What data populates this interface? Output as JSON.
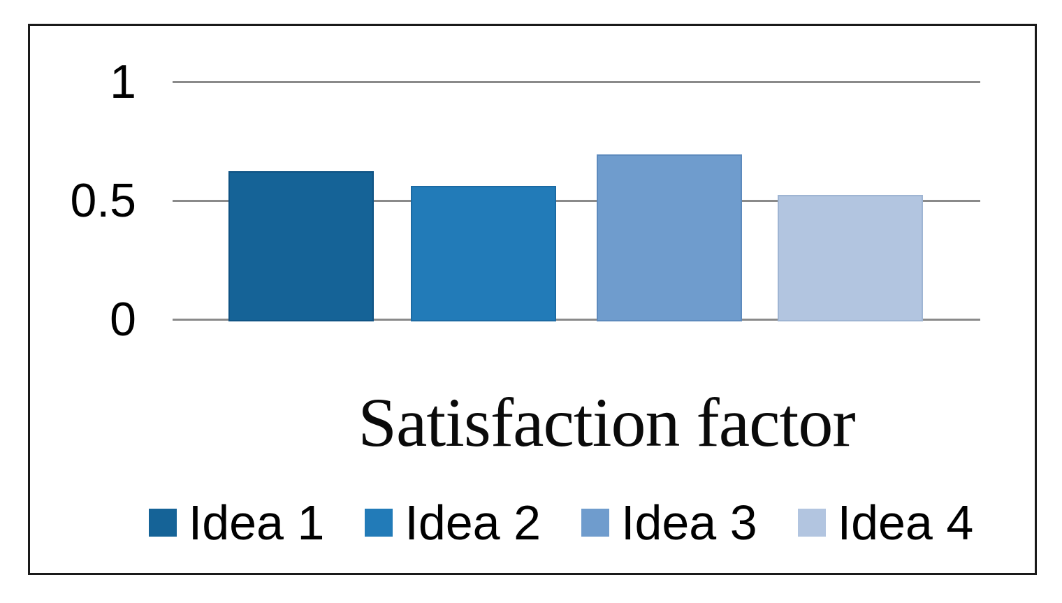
{
  "chart_data": {
    "type": "bar",
    "title": "Satisfaction factor",
    "categories": [
      "Idea 1",
      "Idea 2",
      "Idea 3",
      "Idea 4"
    ],
    "values": [
      0.62,
      0.56,
      0.69,
      0.52
    ],
    "colors": [
      "#156397",
      "#227bb8",
      "#6f9ccd",
      "#b2c5e0"
    ],
    "border_colors": [
      "#0f5384",
      "#1b6aa3",
      "#5d8abd",
      "#9fb5d3"
    ],
    "xlabel": "",
    "ylabel": "",
    "yticks": [
      "1",
      "0.5",
      "0"
    ],
    "ytick_values": [
      1,
      0.5,
      0
    ],
    "ylim": [
      0,
      1
    ],
    "grid": "horizontal",
    "gridline_color": "#8a8a8a",
    "frame_color": "#1a1a1a",
    "legend_position": "bottom",
    "legend_entries": [
      "Idea 1",
      "Idea 2",
      "Idea 3",
      "Idea 4"
    ]
  }
}
